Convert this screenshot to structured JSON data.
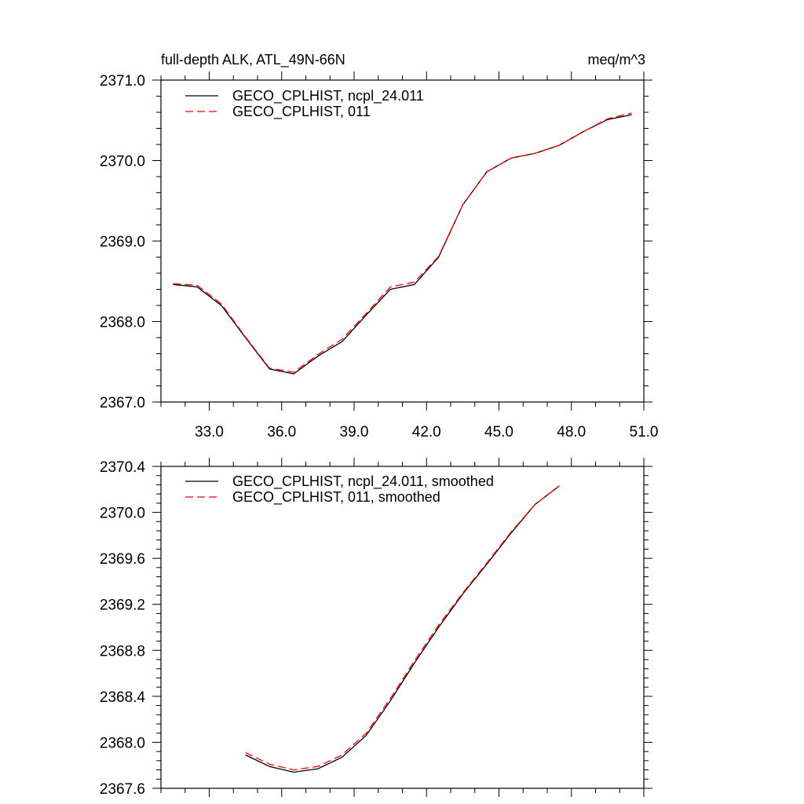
{
  "chart_data": [
    {
      "type": "line",
      "title_left": "full-depth ALK, ATL_49N-66N",
      "title_right": "meq/m^3",
      "xlim": [
        31.0,
        51.0
      ],
      "ylim": [
        2367.0,
        2371.0
      ],
      "x_ticks": [
        "33.0",
        "36.0",
        "39.0",
        "42.0",
        "45.0",
        "48.0",
        "51.0"
      ],
      "y_ticks": [
        "2367.0",
        "2368.0",
        "2369.0",
        "2370.0",
        "2371.0"
      ],
      "x": [
        31.5,
        32.5,
        33.5,
        34.5,
        35.5,
        36.5,
        37.5,
        38.5,
        39.5,
        40.5,
        41.5,
        42.5,
        43.5,
        44.5,
        45.5,
        46.5,
        47.5,
        48.5,
        49.5,
        50.5
      ],
      "series": [
        {
          "name": "GECO_CPLHIST, ncpl_24.011",
          "color": "#000000",
          "dash": "solid",
          "values": [
            2368.46,
            2368.43,
            2368.2,
            2367.8,
            2367.41,
            2367.35,
            2367.57,
            2367.75,
            2368.08,
            2368.4,
            2368.46,
            2368.8,
            2369.45,
            2369.86,
            2370.03,
            2370.09,
            2370.19,
            2370.36,
            2370.51,
            2370.57
          ]
        },
        {
          "name": "GECO_CPLHIST, 011",
          "color": "#ff0000",
          "dash": "dashed",
          "values": [
            2368.47,
            2368.45,
            2368.22,
            2367.81,
            2367.42,
            2367.37,
            2367.59,
            2367.78,
            2368.1,
            2368.43,
            2368.49,
            2368.81,
            2369.45,
            2369.86,
            2370.03,
            2370.09,
            2370.19,
            2370.36,
            2370.52,
            2370.59
          ]
        }
      ]
    },
    {
      "type": "line",
      "xlim": [
        31.0,
        51.0
      ],
      "ylim": [
        2367.6,
        2370.4
      ],
      "y_ticks": [
        "2367.6",
        "2368.0",
        "2368.4",
        "2368.8",
        "2369.2",
        "2369.6",
        "2370.0",
        "2370.4"
      ],
      "x": [
        34.5,
        35.5,
        36.5,
        37.5,
        38.5,
        39.5,
        40.5,
        41.5,
        42.5,
        43.5,
        44.5,
        45.5,
        46.5,
        47.5
      ],
      "series": [
        {
          "name": "GECO_CPLHIST, ncpl_24.011, smoothed",
          "color": "#000000",
          "dash": "solid",
          "values": [
            2367.89,
            2367.79,
            2367.74,
            2367.77,
            2367.87,
            2368.06,
            2368.36,
            2368.69,
            2369.0,
            2369.29,
            2369.55,
            2369.82,
            2370.07,
            2370.23
          ]
        },
        {
          "name": "GECO_CPLHIST, 011, smoothed",
          "color": "#ff0000",
          "dash": "dashed",
          "values": [
            2367.91,
            2367.81,
            2367.76,
            2367.79,
            2367.89,
            2368.08,
            2368.38,
            2368.71,
            2369.02,
            2369.3,
            2369.56,
            2369.83,
            2370.07,
            2370.23
          ]
        }
      ]
    }
  ]
}
